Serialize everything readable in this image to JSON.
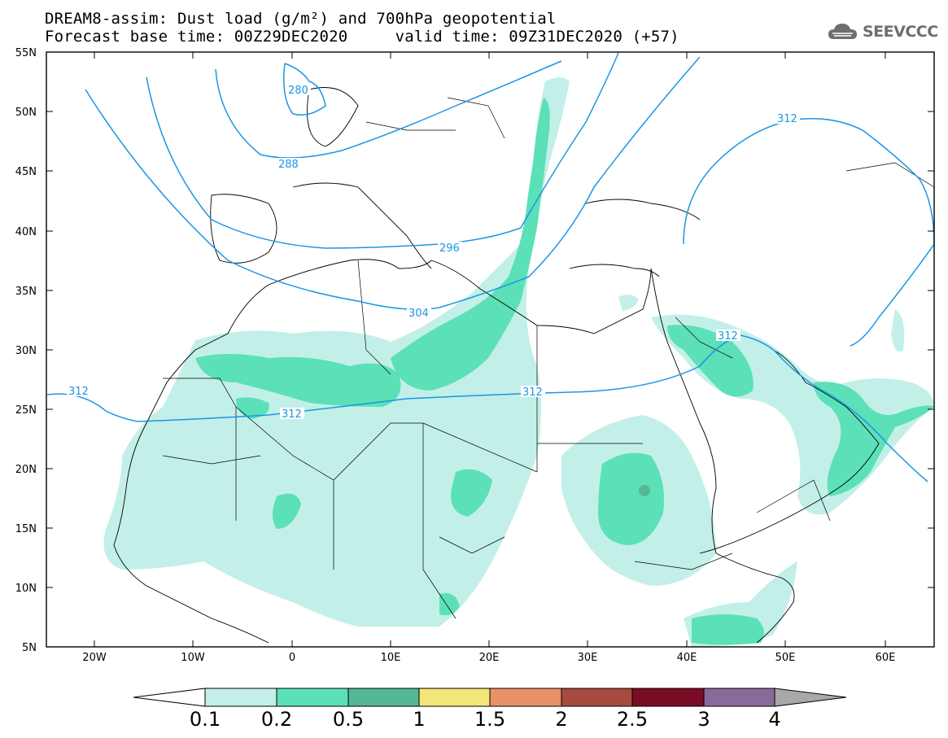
{
  "title_line1": "DREAM8-assim: Dust load (g/m²) and 700hPa geopotential",
  "title_line2": "Forecast base time: 00Z29DEC2020     valid time: 09Z31DEC2020 (+57)",
  "logo": {
    "text": "SEEVCCC",
    "icon": "cloud-icon"
  },
  "map": {
    "lat_labels": [
      "55N",
      "50N",
      "45N",
      "40N",
      "35N",
      "30N",
      "25N",
      "20N",
      "15N",
      "10N",
      "5N"
    ],
    "lon_labels": [
      "20W",
      "10W",
      "0",
      "10E",
      "20E",
      "30E",
      "40E",
      "50E",
      "60E"
    ],
    "contour_labels": [
      "280",
      "288",
      "296",
      "304",
      "312",
      "312",
      "312",
      "312",
      "312"
    ],
    "contour_color": "#1a96e6"
  },
  "colorbar": {
    "labels": [
      "0.1",
      "0.2",
      "0.5",
      "1",
      "1.5",
      "2",
      "2.5",
      "3",
      "4"
    ],
    "colors": [
      "#c2f0e8",
      "#5ce0b8",
      "#55b894",
      "#f2e679",
      "#e89066",
      "#a84a3e",
      "#7a0c26",
      "#8a6a9c",
      "#a8a8a8"
    ]
  }
}
